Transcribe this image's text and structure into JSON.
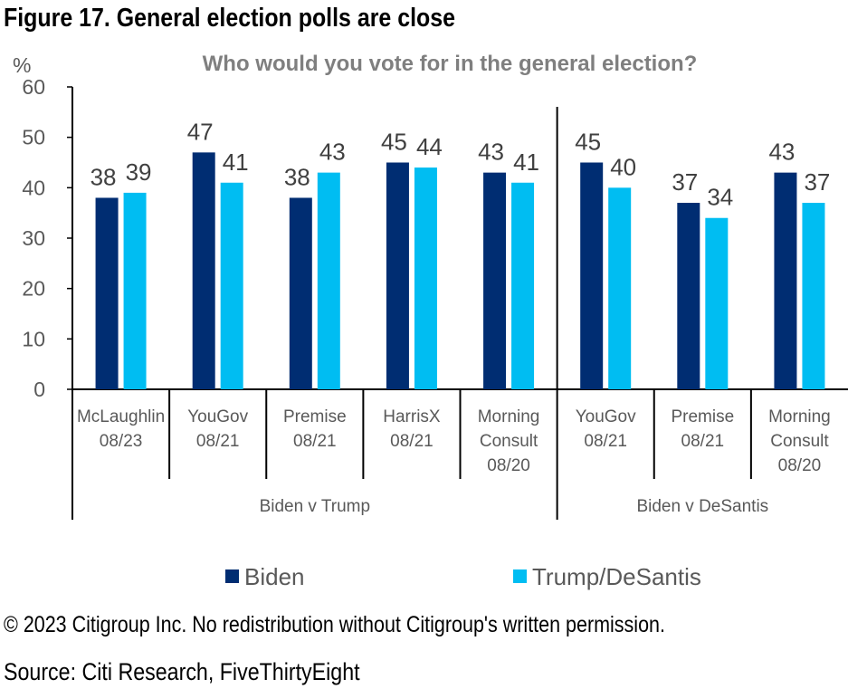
{
  "figure_title": "Figure 17. General election polls are close",
  "copyright": "© 2023 Citigroup Inc. No redistribution without Citigroup's written permission.",
  "source": "Source: Citi Research, FiveThirtyEight",
  "colors": {
    "biden": "#002d72",
    "trump_desantis": "#00bdf2",
    "axis": "#000000",
    "text": "#595959",
    "subtitle": "#7f7f7f"
  },
  "chart_data": {
    "type": "bar",
    "title": "Who would you vote for in the general election?",
    "ylabel": "%",
    "xlabel": "",
    "ylim": [
      0,
      60
    ],
    "yticks": [
      0,
      10,
      20,
      30,
      40,
      50,
      60
    ],
    "grid": false,
    "legend_position": "bottom",
    "categories": [
      [
        "McLaughlin",
        "08/23"
      ],
      [
        "YouGov",
        "08/21"
      ],
      [
        "Premise",
        "08/21"
      ],
      [
        "HarrisX",
        "08/21"
      ],
      [
        "Morning",
        "Consult",
        "08/20"
      ],
      [
        "YouGov",
        "08/21"
      ],
      [
        "Premise",
        "08/21"
      ],
      [
        "Morning",
        "Consult",
        "08/20"
      ]
    ],
    "groups": [
      {
        "label": "Biden v Trump",
        "from": 0,
        "to": 4
      },
      {
        "label": "Biden v DeSantis",
        "from": 5,
        "to": 7
      }
    ],
    "series": [
      {
        "name": "Biden",
        "values": [
          38,
          47,
          38,
          45,
          43,
          45,
          37,
          43
        ]
      },
      {
        "name": "Trump/DeSantis",
        "values": [
          39,
          41,
          43,
          44,
          41,
          40,
          34,
          37
        ]
      }
    ]
  }
}
